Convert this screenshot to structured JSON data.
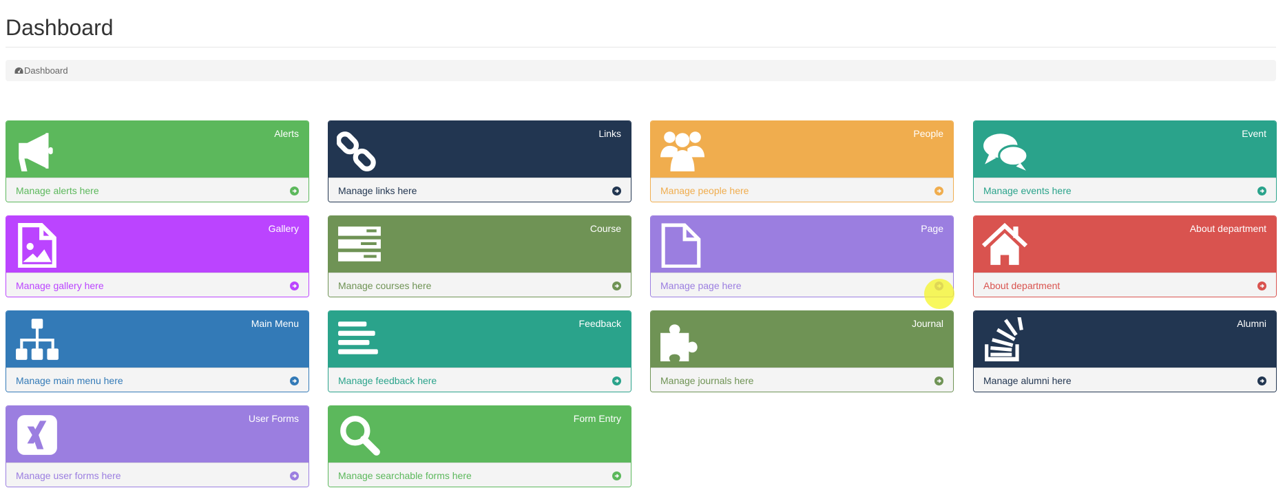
{
  "header": {
    "title": "Dashboard"
  },
  "breadcrumb": {
    "icon": "dashboard-icon",
    "label": "Dashboard"
  },
  "cards": [
    {
      "title": "Alerts",
      "link": "Manage alerts here",
      "icon": "bullhorn-icon",
      "color": "#5cb85c"
    },
    {
      "title": "Links",
      "link": "Manage links here",
      "icon": "chain-icon",
      "color": "#223651"
    },
    {
      "title": "People",
      "link": "Manage people here",
      "icon": "users-icon",
      "color": "#f0ad4e"
    },
    {
      "title": "Event",
      "link": "Manage events here",
      "icon": "comments-icon",
      "color": "#2aa38b"
    },
    {
      "title": "Gallery",
      "link": "Manage gallery here",
      "icon": "file-image-icon",
      "color": "#bb44ff"
    },
    {
      "title": "Course",
      "link": "Manage courses here",
      "icon": "server-icon",
      "color": "#6f9355"
    },
    {
      "title": "Page",
      "link": "Manage page here",
      "icon": "file-icon",
      "color": "#9b7ee0"
    },
    {
      "title": "About department",
      "link": "About department",
      "icon": "home-icon",
      "color": "#d9534f"
    },
    {
      "title": "Main Menu",
      "link": "Manage main menu here",
      "icon": "sitemap-icon",
      "color": "#337ab7"
    },
    {
      "title": "Feedback",
      "link": "Manage feedback here",
      "icon": "align-left-icon",
      "color": "#2aa38b"
    },
    {
      "title": "Journal",
      "link": "Manage journals here",
      "icon": "puzzle-piece-icon",
      "color": "#6f9355"
    },
    {
      "title": "Alumni",
      "link": "Manage alumni here",
      "icon": "stack-overflow-icon",
      "color": "#223651"
    },
    {
      "title": "User Forms",
      "link": "Manage user forms here",
      "icon": "xing-square-icon",
      "color": "#9b7ee0"
    },
    {
      "title": "Form Entry",
      "link": "Manage searchable forms here",
      "icon": "search-icon",
      "color": "#5cb85c"
    }
  ],
  "footer_icon": "arrow-circle-right-icon"
}
